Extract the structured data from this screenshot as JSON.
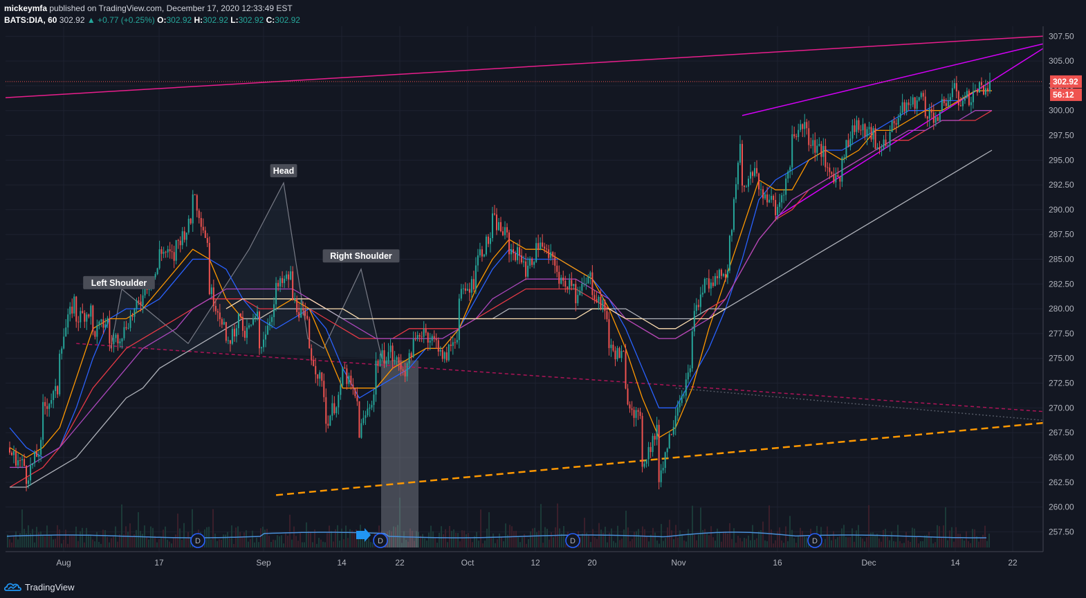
{
  "header": {
    "author": "mickeymfa",
    "published": " published on TradingView.com, December 17, 2020 12:33:49 EST",
    "symbol": "BATS:DIA, 60",
    "last": "302.92",
    "change": "▲ +0.77 (+0.25%)",
    "o_label": "O:",
    "o": "302.92",
    "h_label": "H:",
    "h": "302.92",
    "l_label": "L:",
    "l": "302.92",
    "c_label": "C:",
    "c": "302.92"
  },
  "footer": {
    "brand": "TradingView"
  },
  "chart_data": {
    "type": "candlestick",
    "symbol": "BATS:DIA",
    "interval": "60",
    "ylim": [
      255.5,
      308.5
    ],
    "y_ticks": [
      "307.50",
      "305.00",
      "302.50",
      "300.00",
      "297.50",
      "295.00",
      "292.50",
      "290.00",
      "287.50",
      "285.00",
      "282.50",
      "280.00",
      "277.50",
      "275.00",
      "272.50",
      "270.00",
      "267.50",
      "265.00",
      "262.50",
      "260.00",
      "257.50"
    ],
    "x_ticks": [
      "Aug",
      "17",
      "Sep",
      "14",
      "22",
      "Oct",
      "12",
      "20",
      "Nov",
      "16",
      "Dec",
      "14",
      "22"
    ],
    "price_label": "302.92",
    "countdown_label": "56:12",
    "annotations": [
      "Left Shoulder",
      "Head",
      "Right Shoulder"
    ],
    "dividend_markers": [
      "D",
      "D",
      "D",
      "D"
    ],
    "price_path": [
      [
        266.0,
        265.5
      ],
      [
        264.0,
        263.0
      ],
      [
        266.5,
        270.0
      ],
      [
        272.0,
        276.0
      ],
      [
        281.5,
        279.0
      ],
      [
        280.0,
        277.5
      ],
      [
        279.0,
        276.5
      ],
      [
        278.0,
        278.5
      ],
      [
        281.0,
        282.0
      ],
      [
        284.0,
        286.0
      ],
      [
        285.0,
        286.5
      ],
      [
        289.0,
        292.0
      ],
      [
        286.0,
        282.0
      ],
      [
        278.0,
        276.0
      ],
      [
        280.0,
        277.0
      ],
      [
        279.5,
        276.0
      ],
      [
        281.0,
        282.0
      ],
      [
        283.5,
        281.0
      ],
      [
        278.0,
        276.0
      ],
      [
        271.0,
        268.5
      ],
      [
        272.0,
        274.0
      ],
      [
        270.0,
        267.5
      ],
      [
        272.0,
        274.5
      ],
      [
        276.0,
        275.0
      ],
      [
        273.5,
        275.5
      ],
      [
        278.5,
        277.5
      ],
      [
        276.0,
        274.5
      ],
      [
        278.0,
        281.0
      ],
      [
        283.0,
        285.0
      ],
      [
        287.5,
        289.0
      ],
      [
        287.0,
        286.0
      ],
      [
        285.0,
        283.5
      ],
      [
        287.5,
        286.0
      ],
      [
        284.0,
        282.5
      ],
      [
        283.0,
        281.0
      ],
      [
        283.5,
        282.0
      ],
      [
        279.0,
        276.0
      ],
      [
        275.0,
        271.5
      ],
      [
        268.0,
        264.5
      ],
      [
        268.0,
        263.0
      ],
      [
        269.5,
        270.0
      ],
      [
        274.0,
        278.5
      ],
      [
        284.0,
        282.0
      ],
      [
        284.5,
        282.5
      ],
      [
        299.0,
        292.5
      ],
      [
        294.0,
        292.0
      ],
      [
        290.5,
        289.5
      ],
      [
        295.0,
        297.5
      ],
      [
        299.0,
        297.0
      ],
      [
        295.5,
        294.0
      ],
      [
        293.0,
        295.5
      ],
      [
        299.5,
        298.0
      ],
      [
        297.5,
        296.0
      ],
      [
        297.5,
        298.5
      ],
      [
        301.0,
        300.5
      ],
      [
        301.5,
        300.0
      ],
      [
        299.0,
        300.5
      ],
      [
        302.5,
        301.0
      ],
      [
        301.5,
        302.2
      ],
      [
        302.5,
        302.9
      ]
    ],
    "volume_profile": "bars",
    "series": [
      {
        "name": "",
        "color": "#2962ff",
        "values": [
          268,
          266,
          265,
          266,
          270,
          275,
          279,
          280,
          280,
          281,
          283,
          285,
          285,
          284,
          281,
          279,
          278,
          279,
          280,
          278,
          274,
          271,
          272,
          273,
          274,
          276,
          276,
          278,
          281,
          284,
          286,
          285,
          285,
          285,
          284,
          283,
          281,
          278,
          274,
          270,
          270,
          273,
          276,
          280,
          285,
          291,
          293,
          294,
          295,
          296,
          296,
          297,
          298,
          299,
          300,
          300,
          301,
          301,
          302,
          302
        ]
      },
      {
        "name": "",
        "color": "#ff9800",
        "values": [
          266,
          265,
          266,
          268,
          273,
          278,
          279,
          279,
          280,
          282,
          284,
          286,
          285,
          281,
          279,
          279,
          280,
          281,
          280,
          276,
          272,
          272,
          272,
          274,
          275,
          276,
          276,
          278,
          282,
          285,
          287,
          286,
          286,
          285,
          284,
          283,
          280,
          276,
          271,
          267,
          268,
          272,
          278,
          283,
          288,
          293,
          292,
          292,
          295,
          296,
          295,
          296,
          298,
          298,
          299,
          300,
          300,
          301,
          302,
          302
        ]
      },
      {
        "name": "",
        "color": "#e63946",
        "values": [
          262,
          263,
          264,
          266,
          269,
          272,
          274,
          276,
          277,
          278,
          279,
          280,
          281,
          281,
          281,
          280,
          280,
          280,
          280,
          279,
          278,
          277,
          277,
          277,
          278,
          278,
          278,
          278,
          279,
          280,
          281,
          282,
          282,
          282,
          282,
          281,
          280,
          279,
          278,
          277,
          277,
          278,
          280,
          281,
          284,
          287,
          289,
          290,
          292,
          293,
          294,
          295,
          296,
          297,
          297,
          298,
          299,
          299,
          299,
          300
        ]
      },
      {
        "name": "",
        "color": "#ab47bc",
        "values": [
          264,
          264,
          265,
          266,
          268,
          270,
          272,
          274,
          276,
          277,
          278,
          280,
          281,
          282,
          282,
          282,
          282,
          282,
          281,
          280,
          279,
          278,
          277,
          277,
          277,
          277,
          277,
          278,
          279,
          281,
          282,
          283,
          283,
          283,
          283,
          282,
          281,
          279,
          278,
          277,
          277,
          278,
          279,
          281,
          284,
          287,
          289,
          291,
          292,
          293,
          294,
          295,
          296,
          297,
          298,
          298,
          299,
          299,
          300,
          300
        ]
      },
      {
        "name": "",
        "color": "#b0b3bb",
        "values": [
          262,
          262,
          263,
          264,
          265,
          267,
          269,
          271,
          272,
          274,
          275,
          276,
          277,
          278,
          279,
          279,
          280,
          280,
          280,
          280,
          279,
          279,
          279,
          279,
          279,
          279,
          279,
          279,
          279,
          279,
          280,
          280,
          280,
          280,
          280,
          280,
          280,
          280,
          279,
          279,
          279,
          279,
          280,
          280,
          281,
          282,
          283,
          284,
          285,
          286,
          287,
          288,
          289,
          290,
          291,
          292,
          293,
          294,
          295,
          296
        ]
      },
      {
        "name": "",
        "color": "#ffe0b2",
        "values": [
          null,
          null,
          null,
          null,
          null,
          null,
          null,
          null,
          null,
          null,
          null,
          null,
          null,
          280,
          281,
          281,
          281,
          281,
          281,
          280,
          280,
          279,
          279,
          279,
          279,
          279,
          279,
          279,
          279,
          279,
          279,
          279,
          279,
          279,
          279,
          280,
          280,
          279,
          279,
          278,
          278,
          279,
          279,
          280,
          null,
          null,
          null,
          null,
          null,
          null,
          null,
          null,
          null,
          null,
          null,
          null,
          null,
          null,
          null,
          null
        ]
      }
    ],
    "trendlines": [
      {
        "name": "",
        "color": "#e91e8c",
        "style": "solid",
        "from": [
          0,
          301.3
        ],
        "to": [
          59,
          307.2
        ]
      },
      {
        "name": "",
        "color": "#d500f9",
        "style": "solid",
        "from": [
          44,
          299.5
        ],
        "to": [
          59,
          305.5
        ]
      },
      {
        "name": "",
        "color": "#d500f9",
        "style": "solid",
        "from": [
          46,
          289.2
        ],
        "to": [
          59,
          303.0
        ]
      },
      {
        "name": "",
        "color": "#ad1457",
        "style": "dashed",
        "from": [
          4,
          276.5
        ],
        "to": [
          59,
          270.0
        ]
      },
      {
        "name": "",
        "color": "#ff9800",
        "style": "dashed",
        "from": [
          16,
          261.2
        ],
        "to": [
          59,
          268.0
        ]
      },
      {
        "name": "",
        "color": "#555a66",
        "style": "dotted",
        "from": [
          40,
          272.0
        ],
        "to": [
          59,
          269.2
        ]
      }
    ],
    "grid": true,
    "legend": "none"
  }
}
